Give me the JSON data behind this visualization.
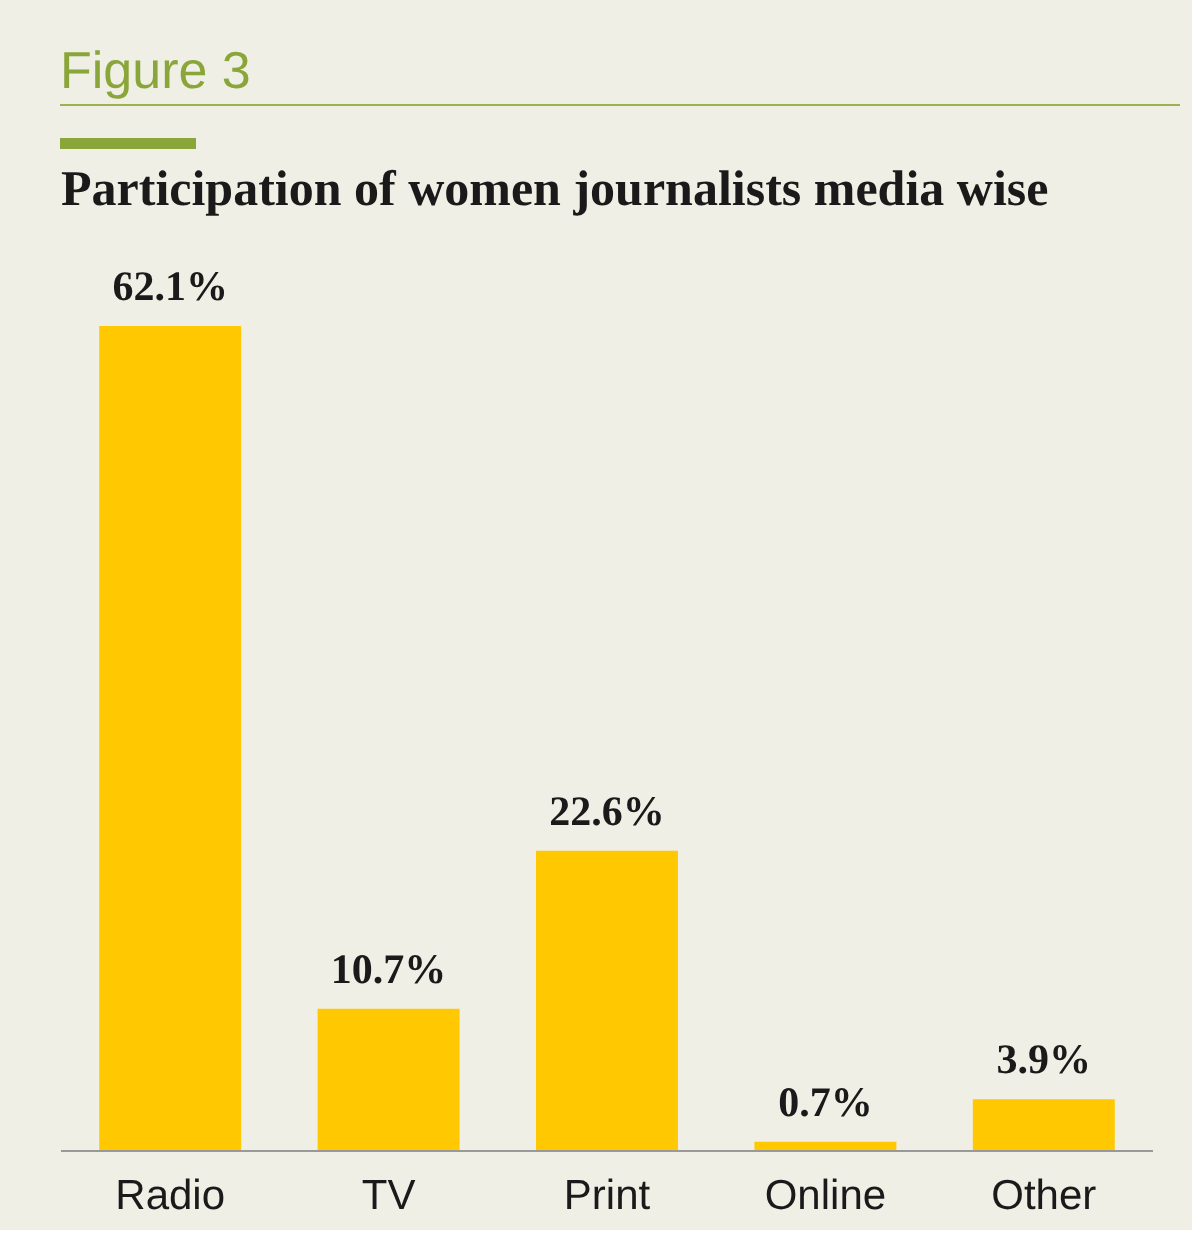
{
  "chart_data": {
    "type": "bar",
    "title": "Participation of women journalists media wise",
    "annotations": [
      "Figure 3"
    ],
    "categories": [
      "Radio",
      "TV",
      "Print",
      "Online",
      "Other"
    ],
    "values": [
      62.1,
      10.7,
      22.6,
      0.7,
      3.9
    ],
    "value_labels": [
      "62.1%",
      "10.7%",
      "22.6%",
      "0.7%",
      "3.9%"
    ],
    "color": "#ffc800",
    "grid": false
  }
}
